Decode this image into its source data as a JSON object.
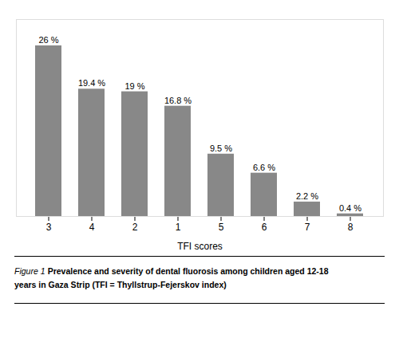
{
  "chart_data": {
    "type": "bar",
    "categories": [
      "3",
      "4",
      "2",
      "1",
      "5",
      "6",
      "7",
      "8"
    ],
    "values": [
      26.0,
      19.4,
      19.0,
      16.8,
      9.5,
      6.6,
      2.2,
      0.4
    ],
    "value_labels": [
      "26 %",
      "19.4 %",
      "19 %",
      "16.8 %",
      "9.5 %",
      "6.6 %",
      "2.2 %",
      "0.4 %"
    ],
    "data_labels": true,
    "color": "#888888",
    "xlabel": "TFI scores",
    "ylim": [
      0,
      30
    ],
    "tick_labels": "x",
    "grid": false,
    "annotations": [
      "Figure 1",
      "Prevalence and severity of dental fluorosis among children aged 12-18",
      "years in Gaza Strip (TFI = Thyllstrup-Fejerskov index)"
    ]
  }
}
